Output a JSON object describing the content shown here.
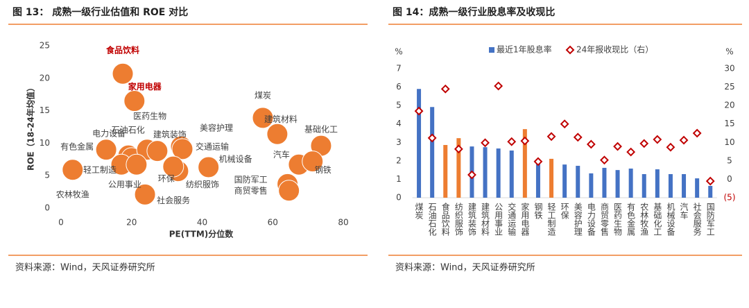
{
  "chart_data": [
    {
      "type": "scatter",
      "title": "图 13： 成熟一级行业估值和 ROE 对比",
      "x_label": "PE(TTM)分位数",
      "y_label": "ROE（18-24年均值）",
      "source": "资料来源：Wind，天风证券研究所",
      "color": "#ed7d31",
      "highlight_color": "#c00000",
      "xlim": [
        0,
        80
      ],
      "xticks": [
        0,
        20,
        40,
        60,
        80
      ],
      "ylim": [
        0,
        25
      ],
      "yticks": [
        0,
        5,
        10,
        15,
        20,
        25
      ],
      "labels": [
        "食品饮料",
        "家用电器",
        "煤炭",
        "建筑材料",
        "基础化工",
        "汽车",
        "钢铁",
        "国防军工",
        "商贸零售",
        "有色金属",
        "电力设备",
        "石油石化",
        "医药生物",
        "建筑装饰",
        "美容护理",
        "交通运输",
        "机械设备",
        "纺织服饰",
        "环保",
        "轻工制造",
        "公用事业",
        "农林牧渔",
        "社会服务"
      ],
      "highlighted": [
        true,
        true,
        false,
        false,
        false,
        false,
        false,
        false,
        false,
        false,
        false,
        false,
        false,
        false,
        false,
        false,
        false,
        false,
        false,
        false,
        false,
        false,
        false
      ],
      "x": [
        17.5,
        20.8,
        57.2,
        61.3,
        73.7,
        67.4,
        71.3,
        64.2,
        64.6,
        12.8,
        19.1,
        20.0,
        24.4,
        27.3,
        34.0,
        34.4,
        41.8,
        33.2,
        31.8,
        17.1,
        21.4,
        3.3,
        23.8
      ],
      "values": [
        20.7,
        16.5,
        13.9,
        11.4,
        9.6,
        6.7,
        7.2,
        3.7,
        2.7,
        9.0,
        8.1,
        7.7,
        9.0,
        8.8,
        9.5,
        9.1,
        6.3,
        5.7,
        6.4,
        6.7,
        6.7,
        5.9,
        2.1
      ]
    },
    {
      "type": "bar_line",
      "title": "图 14：成熟一级行业股息率及收现比",
      "source": "资料来源：Wind，天风证券研究所",
      "y_unit": "%",
      "y2_unit": "%",
      "categories": [
        "煤炭",
        "石油石化",
        "食品饮料",
        "纺织服饰",
        "建筑装饰",
        "建筑材料",
        "公用事业",
        "交通运输",
        "家用电器",
        "钢铁",
        "轻工制造",
        "环保",
        "美容护理",
        "电力设备",
        "商贸零售",
        "医药生物",
        "有色金属",
        "农林牧渔",
        "基础化工",
        "机械设备",
        "汽车",
        "社会服务",
        "国防军工"
      ],
      "ylim": [
        0,
        7
      ],
      "yticks": [
        0,
        1,
        2,
        3,
        4,
        5,
        6,
        7
      ],
      "y2lim": [
        -5,
        30
      ],
      "y2ticks": [
        {
          "value": -5,
          "label": "(5)"
        },
        0,
        5,
        10,
        15,
        20,
        25,
        30
      ],
      "negative_tick_color": "#c00000",
      "series": [
        {
          "name": "最近1年股息率",
          "color": "#4472c4",
          "colors": [
            "#4472c4",
            "#4472c4",
            "#ed7d31",
            "#ed7d31",
            "#4472c4",
            "#4472c4",
            "#4472c4",
            "#4472c4",
            "#ed7d31",
            "#4472c4",
            "#ed7d31",
            "#4472c4",
            "#4472c4",
            "#4472c4",
            "#4472c4",
            "#4472c4",
            "#4472c4",
            "#4472c4",
            "#4472c4",
            "#4472c4",
            "#4472c4",
            "#4472c4",
            "#4472c4"
          ],
          "values": [
            5.9,
            4.92,
            2.86,
            3.23,
            2.78,
            2.74,
            2.67,
            2.56,
            3.72,
            1.99,
            2.11,
            1.8,
            1.73,
            1.32,
            1.62,
            1.5,
            1.58,
            1.28,
            1.54,
            1.28,
            1.28,
            1.05,
            0.64
          ]
        },
        {
          "name": "24年报收现比（右）",
          "color": "#c00000",
          "axis": "y2",
          "marker": "diamond",
          "values": [
            18.5,
            11.2,
            24.5,
            8.2,
            1.2,
            9.9,
            25.3,
            10.2,
            10.4,
            4.8,
            11.6,
            15.0,
            11.4,
            9.5,
            5.2,
            8.9,
            7.4,
            9.7,
            10.8,
            8.7,
            10.6,
            12.5,
            -0.5
          ]
        }
      ]
    }
  ]
}
